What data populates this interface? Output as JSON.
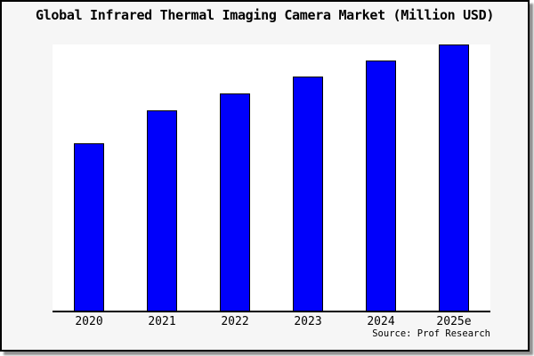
{
  "page": {
    "title": "Global Infrared Thermal Imaging Camera Market (Million USD)",
    "source_caption": "Source: Prof Research"
  },
  "colors": {
    "bar_fill": "#0000fb",
    "bar_border": "#000000",
    "card_background": "#f6f6f6",
    "plot_background": "#ffffff",
    "axis_line": "#000000",
    "text": "#000000",
    "card_border": "#000000",
    "shadow": "#8f8f8f"
  },
  "chart_data": {
    "type": "bar",
    "title": "Global Infrared Thermal Imaging Camera Market (Million USD)",
    "categories": [
      "2020",
      "2021",
      "2022",
      "2023",
      "2024",
      "2025e"
    ],
    "values": [
      63,
      75.3,
      81.5,
      87.8,
      94,
      100
    ],
    "units": "relative bar height, % of tallest bar (chart shows no numeric y-axis)",
    "series_name": "Market size (Million USD)",
    "xlabel": "",
    "ylabel": "",
    "ylim": [
      0,
      100
    ],
    "yaxis_visible": false,
    "gridlines": false,
    "value_labels_shown": false,
    "legend": "none",
    "bar_color": "#0000fb",
    "source": "Source: Prof Research"
  }
}
